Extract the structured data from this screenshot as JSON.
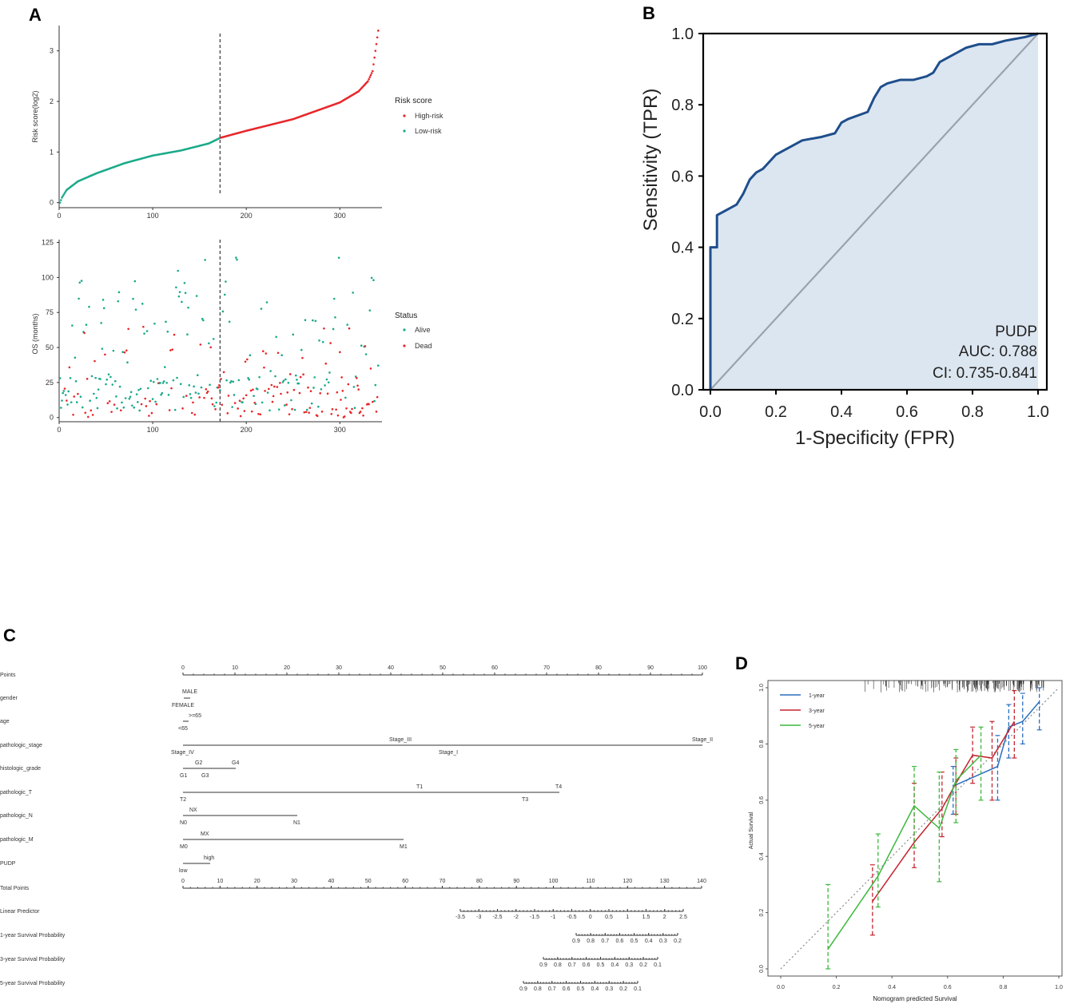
{
  "panels": {
    "a": "A",
    "b": "B",
    "c": "C",
    "d": "D"
  },
  "chart_data": [
    {
      "id": "A-top",
      "type": "scatter",
      "title": "",
      "xlabel": "",
      "ylabel": "Risk score(log2)",
      "xlim": [
        0,
        345
      ],
      "ylim": [
        -0.1,
        3.5
      ],
      "xticks": [
        "0",
        "100",
        "200",
        "300"
      ],
      "yticks": [
        "0",
        "1",
        "2",
        "3"
      ],
      "cutoff_x": 172,
      "legend_title": "Risk score",
      "series": [
        {
          "name": "High-risk",
          "color": "#e8272a",
          "x_range": [
            172,
            341
          ],
          "curve_x": [
            172,
            200,
            250,
            300,
            320,
            330,
            335,
            338,
            341
          ],
          "curve_y": [
            1.28,
            1.42,
            1.65,
            1.98,
            2.2,
            2.4,
            2.6,
            3.0,
            3.4
          ]
        },
        {
          "name": "Low-risk",
          "color": "#1aaa8a",
          "x_range": [
            1,
            171
          ],
          "curve_x": [
            1,
            3,
            8,
            20,
            40,
            70,
            100,
            130,
            160,
            171
          ],
          "curve_y": [
            0.0,
            0.1,
            0.25,
            0.42,
            0.58,
            0.78,
            0.93,
            1.03,
            1.17,
            1.27
          ]
        }
      ]
    },
    {
      "id": "A-bottom",
      "type": "scatter",
      "xlabel": "",
      "ylabel": "OS (months)",
      "xlim": [
        0,
        345
      ],
      "ylim": [
        -3,
        127
      ],
      "xticks": [
        "0",
        "100",
        "200",
        "300"
      ],
      "yticks": [
        "0",
        "25",
        "50",
        "75",
        "100",
        "125"
      ],
      "cutoff_x": 172,
      "legend_title": "Status",
      "series": [
        {
          "name": "Alive",
          "color": "#1aaa8a"
        },
        {
          "name": "Dead",
          "color": "#e8272a"
        }
      ]
    },
    {
      "id": "B",
      "type": "line",
      "title": "",
      "xlabel": "1-Specificity (FPR)",
      "ylabel": "Sensitivity (TPR)",
      "xlim": [
        0,
        1
      ],
      "ylim": [
        0,
        1
      ],
      "xticks": [
        "0.0",
        "0.2",
        "0.4",
        "0.6",
        "0.8",
        "1.0"
      ],
      "yticks": [
        "0.0",
        "0.2",
        "0.4",
        "0.6",
        "0.8",
        "1.0"
      ],
      "roc_x": [
        0,
        0,
        0.02,
        0.02,
        0.04,
        0.06,
        0.08,
        0.1,
        0.12,
        0.14,
        0.16,
        0.2,
        0.22,
        0.26,
        0.28,
        0.34,
        0.38,
        0.4,
        0.42,
        0.48,
        0.5,
        0.52,
        0.54,
        0.58,
        0.62,
        0.66,
        0.68,
        0.7,
        0.72,
        0.76,
        0.78,
        0.82,
        0.86,
        0.9,
        0.96,
        1.0
      ],
      "roc_y": [
        0,
        0.4,
        0.4,
        0.49,
        0.5,
        0.51,
        0.52,
        0.55,
        0.59,
        0.61,
        0.62,
        0.66,
        0.67,
        0.69,
        0.7,
        0.71,
        0.72,
        0.75,
        0.76,
        0.78,
        0.82,
        0.85,
        0.86,
        0.87,
        0.87,
        0.88,
        0.89,
        0.92,
        0.93,
        0.95,
        0.96,
        0.97,
        0.97,
        0.98,
        0.99,
        1.0
      ],
      "annotations": [
        "PUDP",
        "AUC: 0.788",
        "CI: 0.735-0.841"
      ]
    },
    {
      "id": "C",
      "type": "nomogram",
      "rows": [
        {
          "name": "Points",
          "ticks": [
            "0",
            "10",
            "20",
            "30",
            "40",
            "50",
            "60",
            "70",
            "80",
            "90",
            "100"
          ]
        },
        {
          "name": "gender",
          "labels": [
            "MALE",
            "FEMALE"
          ]
        },
        {
          "name": "age",
          "labels": [
            ">=65",
            "<65"
          ]
        },
        {
          "name": "pathologic_stage",
          "labels": [
            "Stage_III",
            "Stage_II",
            "Stage_IV",
            "Stage_I"
          ]
        },
        {
          "name": "histologic_grade",
          "labels": [
            "G2",
            "G4",
            "G1",
            "G3"
          ]
        },
        {
          "name": "pathologic_T",
          "labels": [
            "T1",
            "T4",
            "T2",
            "T3"
          ]
        },
        {
          "name": "pathologic_N",
          "labels": [
            "NX",
            "N0",
            "N1"
          ]
        },
        {
          "name": "pathologic_M",
          "labels": [
            "MX",
            "M0",
            "M1"
          ]
        },
        {
          "name": "PUDP",
          "labels": [
            "high",
            "low"
          ]
        },
        {
          "name": "Total Points",
          "ticks": [
            "0",
            "10",
            "20",
            "30",
            "40",
            "50",
            "60",
            "70",
            "80",
            "90",
            "100",
            "110",
            "120",
            "130",
            "140"
          ]
        },
        {
          "name": "Linear Predictor",
          "ticks": [
            "-3.5",
            "-3",
            "-2.5",
            "-2",
            "-1.5",
            "-1",
            "-0.5",
            "0",
            "0.5",
            "1",
            "1.5",
            "2",
            "2.5"
          ]
        },
        {
          "name": "1-year Survival Probability",
          "ticks": [
            "0.9",
            "0.8",
            "0.7",
            "0.6",
            "0.5",
            "0.4",
            "0.3",
            "0.2"
          ]
        },
        {
          "name": "3-year Survival Probability",
          "ticks": [
            "0.9",
            "0.8",
            "0.7",
            "0.6",
            "0.5",
            "0.4",
            "0.3",
            "0.2",
            "0.1"
          ]
        },
        {
          "name": "5-year Survival Probability",
          "ticks": [
            "0.9",
            "0.8",
            "0.7",
            "0.6",
            "0.5",
            "0.4",
            "0.3",
            "0.2",
            "0.1"
          ]
        }
      ]
    },
    {
      "id": "D",
      "type": "line",
      "xlabel": "Nomogram predicted Survival",
      "ylabel": "Actual Survival",
      "xlim": [
        0,
        1
      ],
      "ylim": [
        0,
        1
      ],
      "xticks": [
        "0.0",
        "0.2",
        "0.4",
        "0.6",
        "0.8",
        "1.0"
      ],
      "yticks": [
        "0.0",
        "0.2",
        "0.4",
        "0.6",
        "0.8",
        "1.0"
      ],
      "series": [
        {
          "name": "1-year",
          "color": "#2a6fbf",
          "x": [
            0.62,
            0.78,
            0.82,
            0.87,
            0.93
          ],
          "y": [
            0.65,
            0.72,
            0.86,
            0.88,
            0.95
          ],
          "err": [
            [
              0.55,
              0.72
            ],
            [
              0.6,
              0.83
            ],
            [
              0.75,
              0.94
            ],
            [
              0.8,
              0.98
            ],
            [
              0.85,
              1.0
            ]
          ]
        },
        {
          "name": "3-year",
          "color": "#c42530",
          "x": [
            0.33,
            0.48,
            0.58,
            0.63,
            0.69,
            0.76,
            0.84
          ],
          "y": [
            0.24,
            0.45,
            0.57,
            0.66,
            0.76,
            0.75,
            0.88
          ],
          "err": [
            [
              0.12,
              0.37
            ],
            [
              0.36,
              0.66
            ],
            [
              0.47,
              0.7
            ],
            [
              0.55,
              0.75
            ],
            [
              0.66,
              0.86
            ],
            [
              0.6,
              0.88
            ],
            [
              0.75,
              0.99
            ]
          ]
        },
        {
          "name": "5-year",
          "color": "#3cb83c",
          "x": [
            0.17,
            0.35,
            0.48,
            0.57,
            0.63,
            0.72
          ],
          "y": [
            0.07,
            0.33,
            0.58,
            0.5,
            0.67,
            0.76
          ],
          "err": [
            [
              0.0,
              0.3
            ],
            [
              0.22,
              0.48
            ],
            [
              0.43,
              0.72
            ],
            [
              0.31,
              0.7
            ],
            [
              0.52,
              0.78
            ],
            [
              0.6,
              0.86
            ]
          ]
        }
      ]
    }
  ]
}
